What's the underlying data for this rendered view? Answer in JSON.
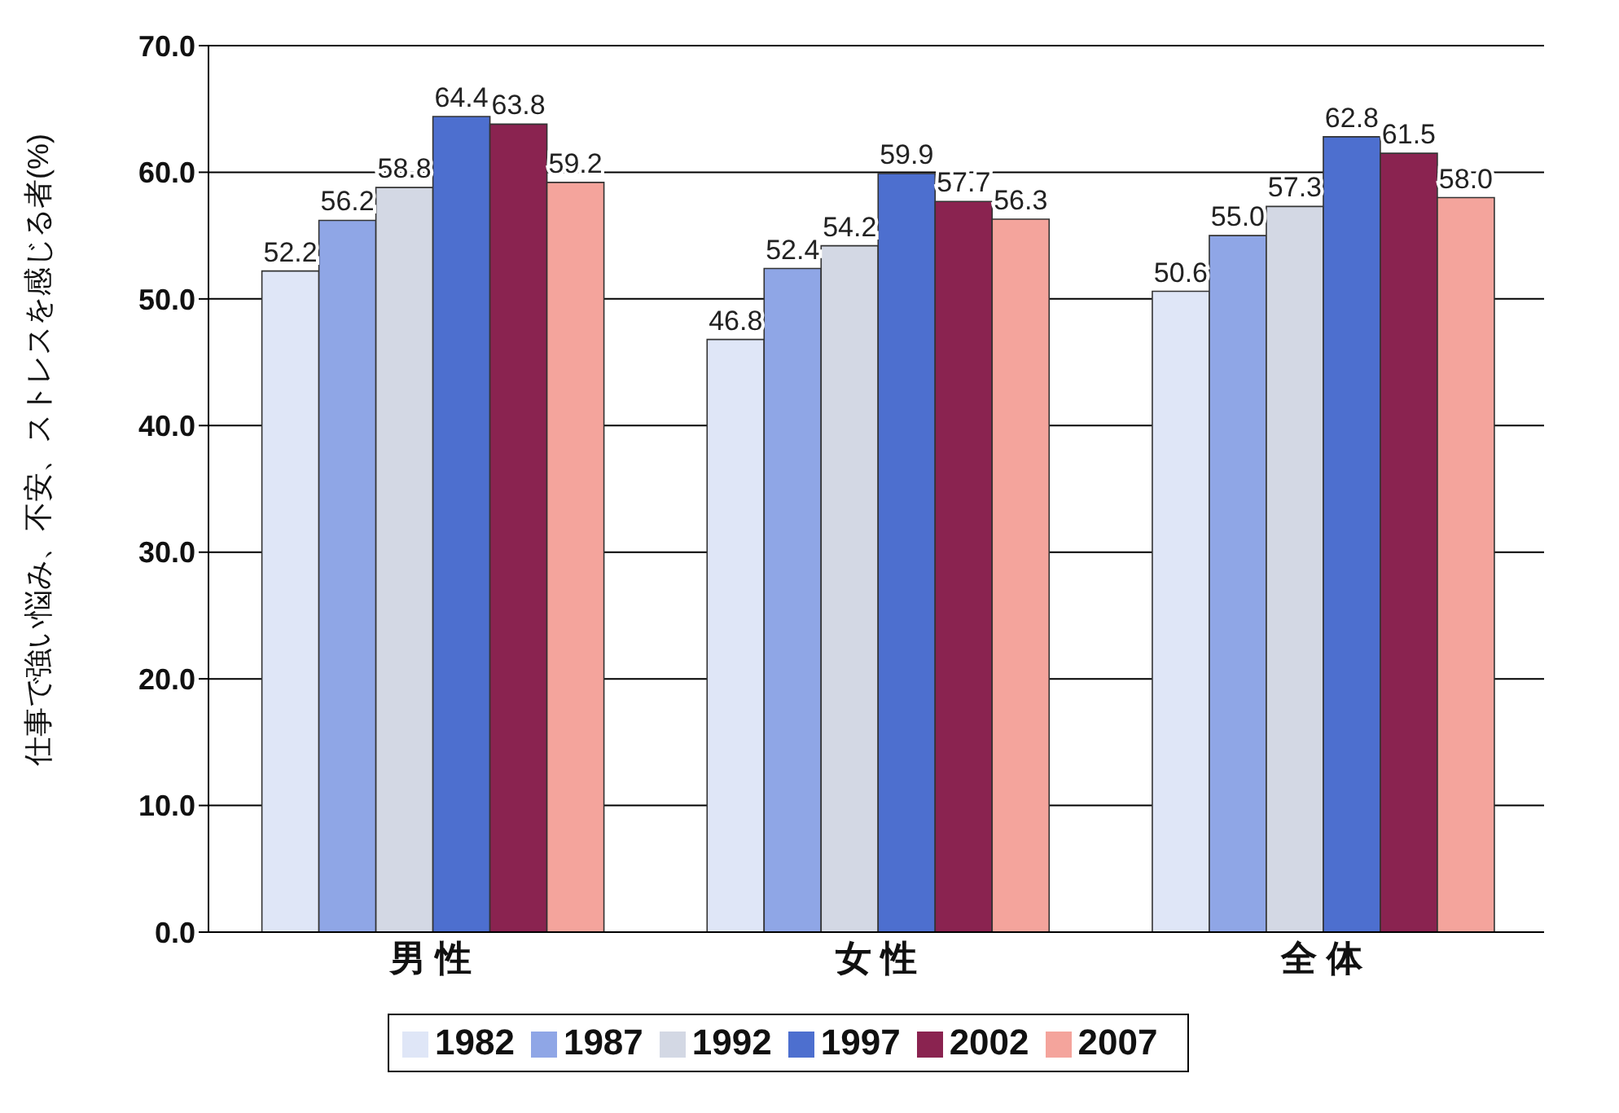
{
  "chart_data": {
    "type": "bar",
    "ylabel": "仕事で強い悩み、不安、ストレスを感じる者(%)",
    "categories": [
      "男 性",
      "女 性",
      "全 体"
    ],
    "series": [
      {
        "name": "1982",
        "color": "#dfe6f7",
        "values": [
          52.2,
          46.8,
          50.6
        ],
        "value_labels": [
          "52.2",
          "46.8",
          "50.6"
        ]
      },
      {
        "name": "1987",
        "color": "#8fa6e6",
        "values": [
          56.2,
          52.4,
          55.0
        ],
        "value_labels": [
          "56.2",
          "52.4",
          "55.0"
        ]
      },
      {
        "name": "1992",
        "color": "#d3d8e4",
        "values": [
          58.8,
          54.2,
          57.3
        ],
        "value_labels": [
          "58.8",
          "54.2",
          "57.3"
        ]
      },
      {
        "name": "1997",
        "color": "#4d6fcf",
        "values": [
          64.4,
          59.9,
          62.8
        ],
        "value_labels": [
          "64.4",
          "59.9",
          "62.8"
        ]
      },
      {
        "name": "2002",
        "color": "#8a2350",
        "values": [
          63.8,
          57.7,
          61.5
        ],
        "value_labels": [
          "63.8",
          "57.7",
          "61.5"
        ]
      },
      {
        "name": "2007",
        "color": "#f4a49c",
        "values": [
          59.2,
          56.3,
          58.0
        ],
        "value_labels": [
          "59.2",
          "56.3",
          "58.0"
        ]
      }
    ],
    "ylim": [
      0,
      70
    ],
    "yticks": [
      {
        "value": 0,
        "label": "0.0"
      },
      {
        "value": 10,
        "label": "10.0"
      },
      {
        "value": 20,
        "label": "20.0"
      },
      {
        "value": 30,
        "label": "30.0"
      },
      {
        "value": 40,
        "label": "40.0"
      },
      {
        "value": 50,
        "label": "50.0"
      },
      {
        "value": 60,
        "label": "60.0"
      },
      {
        "value": 70,
        "label": "70.0"
      }
    ],
    "grid": "y",
    "legend": "bottom"
  }
}
